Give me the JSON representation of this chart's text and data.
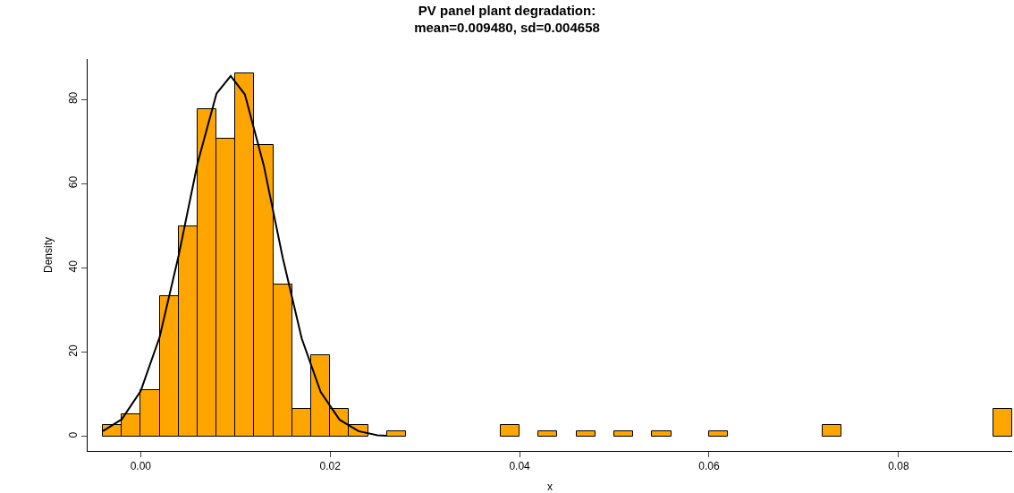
{
  "chart_data": {
    "type": "histogram",
    "title": "PV panel plant degradation:\nmean=0.009480, sd=0.004658",
    "xlabel": "x",
    "ylabel": "Density",
    "bins": [
      -0.004,
      -0.002,
      0,
      0.002,
      0.004,
      0.006,
      0.008,
      0.01,
      0.012,
      0.014,
      0.016,
      0.018,
      0.02,
      0.022,
      0.024,
      0.026,
      0.028,
      0.03,
      0.032,
      0.034,
      0.036,
      0.038,
      0.04,
      0.042,
      0.044,
      0.046,
      0.048,
      0.05,
      0.052,
      0.054,
      0.056,
      0.058,
      0.06,
      0.062,
      0.064,
      0.066,
      0.068,
      0.07,
      0.072,
      0.074,
      0.076,
      0.078,
      0.08,
      0.082,
      0.084,
      0.086,
      0.088,
      0.09,
      0.092
    ],
    "values": [
      2.7,
      5.4,
      11.0,
      33.3,
      50.0,
      77.8,
      70.8,
      86.2,
      69.3,
      36.0,
      6.6,
      19.3,
      6.6,
      2.7,
      0,
      1.3,
      0,
      0,
      0,
      0,
      0,
      2.7,
      0,
      1.3,
      0,
      1.3,
      0,
      1.3,
      0,
      1.3,
      0,
      0,
      1.3,
      0,
      0,
      0,
      0,
      0,
      2.7,
      0,
      0,
      0,
      0,
      0,
      0,
      0,
      0,
      6.6
    ],
    "color": "#ffa500",
    "series": [
      {
        "type": "line",
        "color": "#000000",
        "x": [
          -0.004,
          -0.002,
          0,
          0.002,
          0.004,
          0.006,
          0.008,
          0.0095,
          0.011,
          0.013,
          0.015,
          0.017,
          0.019,
          0.021,
          0.023,
          0.025,
          0.026
        ],
        "values": [
          1.3,
          4.1,
          10.8,
          23.6,
          42.9,
          64.8,
          81.4,
          85.6,
          81.2,
          64.3,
          42.4,
          23.3,
          10.6,
          4.0,
          1.3,
          0.3,
          0.2
        ]
      }
    ],
    "xlim": [
      -0.0056,
      0.092
    ],
    "ylim": [
      -3.4,
      89.6
    ],
    "xticks": [
      {
        "value": 0,
        "label": "0.00"
      },
      0.02,
      0.04,
      0.06,
      0.08
    ],
    "yticks": [
      0,
      20,
      40,
      60,
      80
    ],
    "grid": false,
    "line_style": "solid",
    "marker": "none"
  }
}
